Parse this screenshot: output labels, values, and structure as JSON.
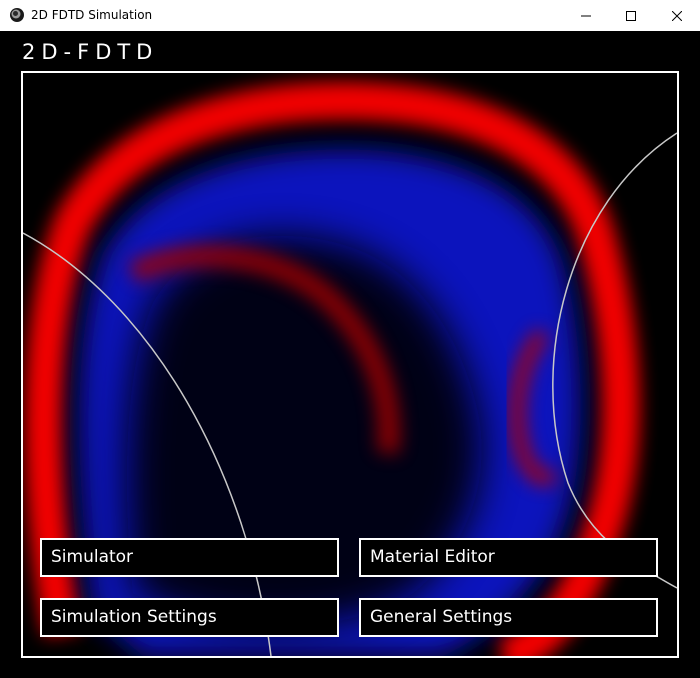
{
  "window": {
    "title": "2D FDTD Simulation",
    "icon": "app-icon",
    "controls": [
      "minimize-icon",
      "maximize-icon",
      "close-icon"
    ]
  },
  "app": {
    "title": "2D-FDTD"
  },
  "simulation_view": {
    "colors": {
      "positive": "#ff0000",
      "negative": "#0000ff",
      "background": "#000000",
      "boundary": "#c8c8c8"
    }
  },
  "menu": {
    "simulator": "Simulator",
    "material_editor": "Material Editor",
    "simulation_settings": "Simulation Settings",
    "general_settings": "General Settings"
  }
}
